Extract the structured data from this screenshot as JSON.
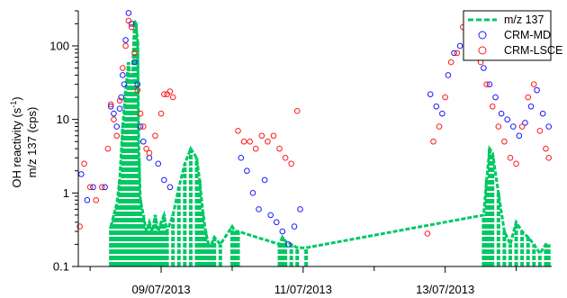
{
  "chart_data": {
    "type": "scatter",
    "y_scale": "log",
    "ylim": [
      0.1,
      300
    ],
    "xlim": [
      "2013-07-07T20:00",
      "2013-07-14T12:00"
    ],
    "grid": false,
    "legend_position": "top-right",
    "ylabel_line1": "OH reactivity (s",
    "ylabel_sup": "-1",
    "ylabel_line1_end": ")",
    "ylabel_line2": "m/z 137 (cps)",
    "y_ticks": [
      {
        "value": 0.1,
        "label": "0.1"
      },
      {
        "value": 1,
        "label": "1"
      },
      {
        "value": 10,
        "label": "10"
      },
      {
        "value": 100,
        "label": "100"
      }
    ],
    "x_ticks": [
      {
        "value": "2013-07-09T00:00",
        "label": "09/07/2013"
      },
      {
        "value": "2013-07-11T00:00",
        "label": "11/07/2013"
      },
      {
        "value": "2013-07-13T00:00",
        "label": "13/07/2013"
      }
    ],
    "colors": {
      "mz137": "#00c864",
      "md": "#1a1aff",
      "lsce": "#ff1a1a"
    },
    "series": [
      {
        "name": "m/z 137",
        "style": "dashed-line",
        "x": [
          "2013-07-08T07:00",
          "2013-07-08T08:00",
          "2013-07-08T09:00",
          "2013-07-08T10:00",
          "2013-07-08T11:00",
          "2013-07-08T12:00",
          "2013-07-08T13:00",
          "2013-07-08T14:00",
          "2013-07-08T15:00",
          "2013-07-08T15:30",
          "2013-07-08T16:00",
          "2013-07-08T16:30",
          "2013-07-08T17:00",
          "2013-07-08T18:00",
          "2013-07-08T19:00",
          "2013-07-08T20:00",
          "2013-07-08T21:00",
          "2013-07-08T22:00",
          "2013-07-08T23:00",
          "2013-07-09T00:00",
          "2013-07-09T01:00",
          "2013-07-09T02:00",
          "2013-07-09T04:00",
          "2013-07-09T06:00",
          "2013-07-09T08:00",
          "2013-07-09T10:00",
          "2013-07-09T12:00",
          "2013-07-09T13:00",
          "2013-07-09T14:00",
          "2013-07-09T15:00",
          "2013-07-09T16:00",
          "2013-07-09T17:00",
          "2013-07-09T18:00",
          "2013-07-09T20:00",
          "2013-07-10T00:00",
          "2013-07-10T01:00",
          "2013-07-10T02:00",
          "2013-07-10T16:00",
          "2013-07-10T17:00",
          "2013-07-10T18:00",
          "2013-07-10T20:00",
          "2013-07-10T22:00",
          "2013-07-11T01:00",
          "2013-07-13T13:00",
          "2013-07-13T14:00",
          "2013-07-13T15:00",
          "2013-07-13T16:00",
          "2013-07-13T18:00",
          "2013-07-13T20:00",
          "2013-07-13T22:00",
          "2013-07-14T00:00",
          "2013-07-14T02:00",
          "2013-07-14T04:00",
          "2013-07-14T06:00",
          "2013-07-14T08:00",
          "2013-07-14T10:00",
          "2013-07-14T11:00"
        ],
        "values": [
          0.35,
          0.5,
          0.7,
          1.5,
          8,
          25,
          60,
          20,
          220,
          200,
          120,
          3,
          0.8,
          0.5,
          0.3,
          0.4,
          0.3,
          0.5,
          0.3,
          0.4,
          0.5,
          0.3,
          0.5,
          1.2,
          2.5,
          4,
          3,
          1.5,
          0.6,
          0.3,
          0.2,
          0.2,
          0.25,
          0.2,
          0.35,
          0.3,
          0.3,
          0.2,
          0.25,
          0.22,
          0.2,
          0.18,
          0.18,
          0.5,
          1.5,
          4,
          3.5,
          1,
          0.3,
          0.2,
          0.4,
          0.3,
          0.25,
          0.2,
          0.15,
          0.2,
          0.2
        ]
      },
      {
        "name": "CRM-MD",
        "style": "open-circle",
        "x": [
          "2013-07-07T21:00",
          "2013-07-07T23:00",
          "2013-07-08T01:00",
          "2013-07-08T05:00",
          "2013-07-08T07:00",
          "2013-07-08T08:00",
          "2013-07-08T09:00",
          "2013-07-08T10:00",
          "2013-07-08T10:30",
          "2013-07-08T11:00",
          "2013-07-08T11:30",
          "2013-07-08T12:00",
          "2013-07-08T13:00",
          "2013-07-08T14:00",
          "2013-07-08T15:00",
          "2013-07-08T16:00",
          "2013-07-08T17:00",
          "2013-07-08T18:00",
          "2013-07-08T20:00",
          "2013-07-08T23:00",
          "2013-07-09T01:00",
          "2013-07-09T03:00",
          "2013-07-10T03:00",
          "2013-07-10T05:00",
          "2013-07-10T07:00",
          "2013-07-10T09:00",
          "2013-07-10T11:00",
          "2013-07-10T13:00",
          "2013-07-10T15:00",
          "2013-07-10T17:00",
          "2013-07-10T19:00",
          "2013-07-10T21:00",
          "2013-07-10T23:00",
          "2013-07-12T19:00",
          "2013-07-12T21:00",
          "2013-07-12T23:00",
          "2013-07-13T01:00",
          "2013-07-13T03:00",
          "2013-07-13T05:00",
          "2013-07-13T07:00",
          "2013-07-13T09:00",
          "2013-07-13T11:00",
          "2013-07-13T13:00",
          "2013-07-13T15:00",
          "2013-07-13T17:00",
          "2013-07-13T19:00",
          "2013-07-13T21:00",
          "2013-07-13T23:00",
          "2013-07-14T01:00",
          "2013-07-14T03:00",
          "2013-07-14T05:00",
          "2013-07-14T07:00",
          "2013-07-14T09:00",
          "2013-07-14T11:00"
        ],
        "values": [
          1.8,
          0.8,
          1.2,
          1.2,
          15,
          12,
          8,
          14,
          20,
          40,
          30,
          120,
          280,
          200,
          60,
          30,
          8,
          5,
          3,
          2.5,
          1.5,
          1.2,
          3,
          2,
          1,
          0.6,
          1.5,
          0.5,
          0.4,
          0.3,
          0.2,
          0.35,
          0.6,
          22,
          15,
          12,
          40,
          80,
          100,
          150,
          120,
          90,
          50,
          30,
          20,
          12,
          10,
          8,
          6,
          9,
          15,
          25,
          12,
          8
        ]
      },
      {
        "name": "CRM-LSCE",
        "style": "open-circle",
        "x": [
          "2013-07-07T20:30",
          "2013-07-07T22:00",
          "2013-07-08T00:00",
          "2013-07-08T02:00",
          "2013-07-08T04:00",
          "2013-07-08T06:00",
          "2013-07-08T07:00",
          "2013-07-08T08:00",
          "2013-07-08T09:00",
          "2013-07-08T10:00",
          "2013-07-08T11:00",
          "2013-07-08T12:00",
          "2013-07-08T13:00",
          "2013-07-08T14:00",
          "2013-07-08T15:00",
          "2013-07-08T16:00",
          "2013-07-08T17:00",
          "2013-07-08T18:00",
          "2013-07-08T19:00",
          "2013-07-08T20:00",
          "2013-07-08T22:00",
          "2013-07-09T00:00",
          "2013-07-09T01:00",
          "2013-07-09T02:00",
          "2013-07-09T03:00",
          "2013-07-09T04:00",
          "2013-07-10T02:00",
          "2013-07-10T04:00",
          "2013-07-10T06:00",
          "2013-07-10T08:00",
          "2013-07-10T10:00",
          "2013-07-10T12:00",
          "2013-07-10T14:00",
          "2013-07-10T16:00",
          "2013-07-10T18:00",
          "2013-07-10T20:00",
          "2013-07-10T22:00",
          "2013-07-12T18:00",
          "2013-07-12T20:00",
          "2013-07-12T22:00",
          "2013-07-13T00:00",
          "2013-07-13T02:00",
          "2013-07-13T04:00",
          "2013-07-13T06:00",
          "2013-07-13T08:00",
          "2013-07-13T10:00",
          "2013-07-13T12:00",
          "2013-07-13T14:00",
          "2013-07-13T16:00",
          "2013-07-13T18:00",
          "2013-07-13T20:00",
          "2013-07-13T22:00",
          "2013-07-14T00:00",
          "2013-07-14T02:00",
          "2013-07-14T04:00",
          "2013-07-14T06:00",
          "2013-07-14T08:00",
          "2013-07-14T10:00",
          "2013-07-14T11:00"
        ],
        "values": [
          0.35,
          2.5,
          1.2,
          0.8,
          1.2,
          4,
          16,
          10,
          6,
          18,
          50,
          100,
          220,
          180,
          80,
          25,
          12,
          8,
          4,
          3.5,
          6,
          12,
          22,
          22,
          24,
          20,
          7,
          5,
          5,
          4,
          6,
          5,
          6,
          4,
          3,
          2.5,
          13,
          0.28,
          5,
          8,
          20,
          60,
          80,
          180,
          150,
          100,
          60,
          30,
          15,
          8,
          5,
          3,
          2.5,
          8,
          20,
          30,
          7,
          4,
          3
        ]
      }
    ]
  }
}
